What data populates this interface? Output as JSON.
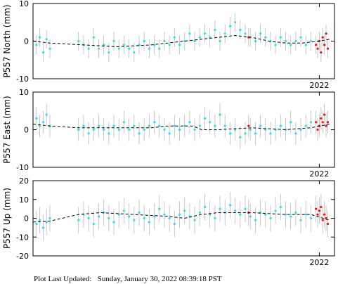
{
  "chart_data": [
    {
      "type": "scatter",
      "y_label": "P557 North (mm)",
      "xlim": [
        2005,
        2022.9
      ],
      "ylim": [
        -10,
        10
      ],
      "xticks": [
        2022
      ],
      "yticks": [
        -10,
        0,
        10
      ],
      "series": [
        {
          "color": "#33ddee",
          "error": 2.5,
          "error_color": "#bbbbbb",
          "x": [
            2005.2,
            2005.4,
            2005.6,
            2005.8,
            2006.0,
            2007.7,
            2008.0,
            2008.3,
            2008.6,
            2008.9,
            2009.2,
            2009.5,
            2009.8,
            2010.1,
            2010.4,
            2010.7,
            2011.0,
            2011.3,
            2011.6,
            2011.9,
            2012.2,
            2012.5,
            2012.8,
            2013.1,
            2013.4,
            2013.7,
            2014.0,
            2014.3,
            2014.6,
            2014.9,
            2015.2,
            2015.5,
            2015.8,
            2016.1,
            2016.4,
            2016.7,
            2017.0,
            2017.3,
            2017.6,
            2017.9,
            2018.2,
            2018.5,
            2018.8,
            2019.1,
            2019.4,
            2019.7,
            2020.0,
            2020.3,
            2020.6,
            2020.9,
            2021.2,
            2021.5
          ],
          "values": [
            -1,
            1,
            -3,
            0.5,
            -2,
            0,
            -1,
            -2,
            1,
            -2,
            -1,
            -3,
            0,
            -2,
            -1,
            -2,
            -3,
            -1,
            0,
            -2,
            -1,
            -2,
            0,
            -1,
            1,
            -1,
            0,
            2,
            0,
            1,
            2,
            1,
            3,
            0,
            2,
            4,
            5,
            3,
            2,
            1,
            0,
            2,
            1,
            0,
            -1,
            1,
            0,
            -1,
            0,
            1,
            -1,
            0
          ]
        },
        {
          "color": "#ee1111",
          "error": 2.5,
          "error_color": "#bbbbbb",
          "x": [
            2017.8,
            2021.8,
            2021.9,
            2022.0,
            2022.1,
            2022.2,
            2022.3,
            2022.4,
            2022.5
          ],
          "values": [
            1,
            -1,
            -2,
            0,
            -3,
            1,
            -1,
            2,
            -2
          ]
        },
        {
          "color": "#000000",
          "line": "dashed",
          "x": [
            2005,
            2006,
            2008,
            2010,
            2012,
            2014,
            2016,
            2017,
            2018,
            2019,
            2020,
            2021,
            2022,
            2022.6
          ],
          "values": [
            0,
            -0.5,
            -1,
            -1.5,
            -1,
            0,
            1,
            1.5,
            1,
            0,
            -0.5,
            -0.5,
            0,
            0.5
          ]
        }
      ]
    },
    {
      "type": "scatter",
      "y_label": "P557 East (mm)",
      "xlim": [
        2005,
        2022.9
      ],
      "ylim": [
        -10,
        10
      ],
      "xticks": [
        2022
      ],
      "yticks": [
        -10,
        0,
        10
      ],
      "series": [
        {
          "color": "#33ddee",
          "error": 3,
          "error_color": "#bbbbbb",
          "x": [
            2005.2,
            2005.4,
            2005.6,
            2005.8,
            2006.0,
            2007.7,
            2008.0,
            2008.3,
            2008.6,
            2008.9,
            2009.2,
            2009.5,
            2009.8,
            2010.1,
            2010.4,
            2010.7,
            2011.0,
            2011.3,
            2011.6,
            2011.9,
            2012.2,
            2012.5,
            2012.8,
            2013.1,
            2013.4,
            2013.7,
            2014.0,
            2014.3,
            2014.6,
            2014.9,
            2015.2,
            2015.5,
            2015.8,
            2016.1,
            2016.4,
            2016.7,
            2017.0,
            2017.3,
            2017.6,
            2017.9,
            2018.2,
            2018.5,
            2018.8,
            2019.1,
            2019.4,
            2019.7,
            2020.0,
            2020.3,
            2020.6,
            2020.9,
            2021.2,
            2021.5
          ],
          "values": [
            3,
            1,
            2,
            4,
            1,
            0,
            1,
            -1,
            0,
            1,
            0,
            -1,
            1,
            0,
            2,
            0,
            1,
            -1,
            0,
            1,
            2,
            1,
            0,
            -1,
            1,
            0,
            1,
            2,
            0,
            1,
            3,
            2,
            1,
            4,
            1,
            -1,
            0,
            -2,
            -1,
            0,
            -1,
            1,
            0,
            -1,
            0,
            1,
            0,
            2,
            -1,
            0,
            1,
            2
          ]
        },
        {
          "color": "#ee1111",
          "error": 3,
          "error_color": "#bbbbbb",
          "x": [
            2017.8,
            2021.8,
            2021.9,
            2022.0,
            2022.1,
            2022.2,
            2022.3,
            2022.4,
            2022.5
          ],
          "values": [
            1,
            2,
            0,
            1,
            3,
            2,
            4,
            1,
            2
          ]
        },
        {
          "color": "#000000",
          "line": "dashed",
          "x": [
            2005,
            2006,
            2007.7,
            2010,
            2012,
            2013,
            2014.5,
            2015,
            2016,
            2018,
            2020,
            2021.5,
            2022.6
          ],
          "values": [
            1.5,
            1,
            0.5,
            0.5,
            0.5,
            1,
            1,
            0,
            0,
            0.5,
            0,
            0.5,
            1.5
          ]
        }
      ]
    },
    {
      "type": "scatter",
      "y_label": "P557 Up (mm)",
      "xlim": [
        2005,
        2022.9
      ],
      "ylim": [
        -20,
        20
      ],
      "xticks": [
        2022
      ],
      "yticks": [
        -20,
        -10,
        0,
        10,
        20
      ],
      "series": [
        {
          "color": "#33ddee",
          "error": 7,
          "error_color": "#bbbbbb",
          "x": [
            2005.2,
            2005.4,
            2005.6,
            2005.8,
            2006.0,
            2007.7,
            2008.0,
            2008.3,
            2008.6,
            2008.9,
            2009.2,
            2009.5,
            2009.8,
            2010.1,
            2010.4,
            2010.7,
            2011.0,
            2011.3,
            2011.6,
            2011.9,
            2012.2,
            2012.5,
            2012.8,
            2013.1,
            2013.4,
            2013.7,
            2014.0,
            2014.3,
            2014.6,
            2014.9,
            2015.2,
            2015.5,
            2015.8,
            2016.1,
            2016.4,
            2016.7,
            2017.0,
            2017.3,
            2017.6,
            2017.9,
            2018.2,
            2018.5,
            2018.8,
            2019.1,
            2019.4,
            2019.7,
            2020.0,
            2020.3,
            2020.6,
            2020.9,
            2021.2,
            2021.5
          ],
          "values": [
            -3,
            -1,
            -5,
            -2,
            0,
            -1,
            2,
            0,
            -3,
            1,
            3,
            0,
            -2,
            2,
            4,
            1,
            -1,
            3,
            0,
            -2,
            1,
            5,
            2,
            0,
            -3,
            2,
            4,
            1,
            -1,
            3,
            6,
            2,
            0,
            5,
            3,
            7,
            4,
            2,
            5,
            1,
            -1,
            3,
            2,
            0,
            4,
            6,
            2,
            1,
            3,
            -1,
            2,
            0
          ]
        },
        {
          "color": "#ee1111",
          "error": 7,
          "error_color": "#bbbbbb",
          "x": [
            2017.8,
            2021.8,
            2021.9,
            2022.0,
            2022.1,
            2022.2,
            2022.3,
            2022.4,
            2022.5
          ],
          "values": [
            3,
            5,
            2,
            4,
            6,
            -1,
            2,
            0,
            -3
          ]
        },
        {
          "color": "#000000",
          "line": "dashed",
          "x": [
            2005,
            2006,
            2007.7,
            2009,
            2011,
            2013,
            2014,
            2015,
            2016,
            2018,
            2020,
            2021.5,
            2022.6
          ],
          "values": [
            -2,
            -1.5,
            2,
            3,
            2,
            1,
            0,
            2,
            3,
            3,
            2,
            2,
            -1
          ]
        }
      ]
    }
  ],
  "footer": "Plot Last Updated:   Sunday, January 30, 2022 08:39:18 PST"
}
